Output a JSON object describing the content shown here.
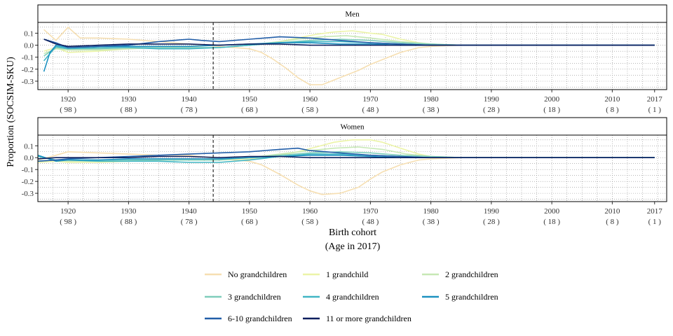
{
  "figure": {
    "ylabel": "Proportion (SOCSIM-SKU)",
    "xlabel_line1": "Birth cohort",
    "xlabel_line2": "(Age in 2017)"
  },
  "chart_data": {
    "type": "line",
    "xlim": [
      1915,
      2019
    ],
    "ylim": [
      -0.37,
      0.19
    ],
    "y_ticks": [
      0.1,
      0.0,
      -0.1,
      -0.2,
      -0.3
    ],
    "y_tick_labels": [
      "0.1",
      "0.0",
      "-0.1",
      "-0.2",
      "-0.3"
    ],
    "x_ticks": [
      {
        "x": 1920,
        "label": "1920",
        "sub": "( 98 )"
      },
      {
        "x": 1930,
        "label": "1930",
        "sub": "( 88 )"
      },
      {
        "x": 1940,
        "label": "1940",
        "sub": "( 78 )"
      },
      {
        "x": 1950,
        "label": "1950",
        "sub": "( 68 )"
      },
      {
        "x": 1960,
        "label": "1960",
        "sub": "( 58 )"
      },
      {
        "x": 1970,
        "label": "1970",
        "sub": "( 48 )"
      },
      {
        "x": 1980,
        "label": "1980",
        "sub": "( 38 )"
      },
      {
        "x": 1990,
        "label": "1990",
        "sub": "( 28 )"
      },
      {
        "x": 2000,
        "label": "2000",
        "sub": "( 18 )"
      },
      {
        "x": 2010,
        "label": "2010",
        "sub": "( 8 )"
      },
      {
        "x": 2017,
        "label": "2017",
        "sub": "( 1 )"
      }
    ],
    "legend_position": "bottom",
    "series_styles": [
      {
        "name": "No grandchildren",
        "color": "#f6dfb2"
      },
      {
        "name": "1 grandchild",
        "color": "#ecf4a8"
      },
      {
        "name": "2 grandchildren",
        "color": "#c7e8b5"
      },
      {
        "name": "3 grandchildren",
        "color": "#7fcdbb"
      },
      {
        "name": "4 grandchildren",
        "color": "#41b6c4"
      },
      {
        "name": "5 grandchildren",
        "color": "#1d91c0"
      },
      {
        "name": "6-10 grandchildren",
        "color": "#225ea8"
      },
      {
        "name": "11 or more grandchildren",
        "color": "#0c1f5e"
      }
    ],
    "panels": [
      {
        "title": "Men",
        "vline": 1944,
        "series": [
          {
            "name": "No grandchildren",
            "x": [
              1916,
              1918,
              1920,
              1922,
              1925,
              1930,
              1935,
              1940,
              1945,
              1950,
              1952,
              1954,
              1956,
              1958,
              1960,
              1962,
              1964,
              1966,
              1968,
              1970,
              1972,
              1975,
              1978,
              1980,
              1985,
              1990,
              2000,
              2010,
              2017
            ],
            "y": [
              0.13,
              0.04,
              0.15,
              0.06,
              0.06,
              0.05,
              0.03,
              0.01,
              -0.01,
              -0.03,
              -0.06,
              -0.12,
              -0.19,
              -0.27,
              -0.33,
              -0.33,
              -0.29,
              -0.25,
              -0.21,
              -0.16,
              -0.12,
              -0.06,
              -0.02,
              -0.01,
              0.0,
              0.0,
              0.0,
              0.0,
              0.0
            ]
          },
          {
            "name": "1 grandchild",
            "x": [
              1916,
              1918,
              1920,
              1925,
              1930,
              1935,
              1940,
              1945,
              1950,
              1955,
              1958,
              1961,
              1964,
              1967,
              1970,
              1972,
              1975,
              1978,
              1980,
              1985,
              1990,
              2000,
              2010,
              2017
            ],
            "y": [
              -0.05,
              -0.02,
              -0.06,
              -0.05,
              -0.03,
              -0.02,
              -0.02,
              -0.02,
              0.0,
              0.03,
              0.06,
              0.09,
              0.11,
              0.12,
              0.1,
              0.09,
              0.05,
              0.02,
              0.01,
              0.0,
              0.0,
              0.0,
              0.0,
              0.0
            ]
          },
          {
            "name": "2 grandchildren",
            "x": [
              1916,
              1918,
              1920,
              1925,
              1930,
              1935,
              1940,
              1945,
              1950,
              1955,
              1958,
              1962,
              1966,
              1970,
              1975,
              1980,
              1985,
              1990,
              2000,
              2017
            ],
            "y": [
              -0.07,
              -0.03,
              -0.04,
              -0.04,
              -0.03,
              -0.02,
              -0.02,
              -0.02,
              0.0,
              0.03,
              0.05,
              0.07,
              0.08,
              0.06,
              0.03,
              0.01,
              0.0,
              0.0,
              0.0,
              0.0
            ]
          },
          {
            "name": "3 grandchildren",
            "x": [
              1916,
              1918,
              1920,
              1925,
              1930,
              1935,
              1940,
              1945,
              1950,
              1955,
              1960,
              1965,
              1970,
              1975,
              1980,
              1985,
              2017
            ],
            "y": [
              -0.09,
              -0.02,
              -0.03,
              -0.03,
              -0.02,
              -0.02,
              -0.02,
              -0.02,
              0.0,
              0.02,
              0.04,
              0.05,
              0.04,
              0.02,
              0.01,
              0.0,
              0.0
            ]
          },
          {
            "name": "4 grandchildren",
            "x": [
              1916,
              1918,
              1920,
              1925,
              1930,
              1935,
              1940,
              1945,
              1950,
              1955,
              1960,
              1965,
              1970,
              1975,
              1980,
              2017
            ],
            "y": [
              -0.13,
              -0.01,
              -0.03,
              -0.02,
              -0.02,
              -0.03,
              -0.03,
              -0.02,
              0.0,
              0.02,
              0.03,
              0.03,
              0.02,
              0.01,
              0.0,
              0.0
            ]
          },
          {
            "name": "5 grandchildren",
            "x": [
              1916,
              1917,
              1918,
              1920,
              1925,
              1930,
              1935,
              1940,
              1945,
              1950,
              1955,
              1960,
              1965,
              1970,
              1975,
              1980,
              2017
            ],
            "y": [
              -0.22,
              -0.06,
              0.0,
              -0.02,
              -0.01,
              -0.01,
              -0.01,
              -0.01,
              0.0,
              0.01,
              0.02,
              0.02,
              0.01,
              0.01,
              0.0,
              0.0,
              0.0
            ]
          },
          {
            "name": "6-10 grandchildren",
            "x": [
              1916,
              1918,
              1920,
              1925,
              1930,
              1935,
              1940,
              1942,
              1945,
              1950,
              1955,
              1960,
              1965,
              1970,
              1975,
              1980,
              2017
            ],
            "y": [
              0.05,
              0.02,
              -0.02,
              -0.01,
              0.0,
              0.03,
              0.05,
              0.04,
              0.03,
              0.05,
              0.07,
              0.06,
              0.04,
              0.02,
              0.01,
              0.0,
              0.0
            ]
          },
          {
            "name": "11 or more grandchildren",
            "x": [
              1916,
              1918,
              1920,
              1925,
              1930,
              1935,
              1940,
              1945,
              1950,
              1955,
              1960,
              1965,
              1970,
              1975,
              1980,
              2017
            ],
            "y": [
              0.05,
              0.01,
              -0.01,
              0.0,
              0.01,
              0.01,
              0.01,
              0.0,
              0.01,
              0.01,
              0.0,
              0.0,
              0.0,
              0.0,
              0.0,
              0.0
            ]
          }
        ]
      },
      {
        "title": "Women",
        "vline": 1944,
        "series": [
          {
            "name": "No grandchildren",
            "x": [
              1915,
              1918,
              1920,
              1925,
              1930,
              1935,
              1940,
              1945,
              1950,
              1952,
              1955,
              1958,
              1960,
              1962,
              1965,
              1968,
              1970,
              1972,
              1975,
              1978,
              1980,
              1985,
              1990,
              2000,
              2010,
              2017
            ],
            "y": [
              -0.02,
              0.02,
              0.05,
              0.04,
              0.03,
              0.02,
              0.02,
              -0.01,
              -0.03,
              -0.06,
              -0.14,
              -0.23,
              -0.28,
              -0.31,
              -0.3,
              -0.25,
              -0.18,
              -0.12,
              -0.06,
              -0.02,
              -0.01,
              0.0,
              0.0,
              0.0,
              0.0,
              0.0
            ]
          },
          {
            "name": "1 grandchild",
            "x": [
              1915,
              1918,
              1920,
              1925,
              1930,
              1935,
              1940,
              1945,
              1950,
              1955,
              1958,
              1961,
              1964,
              1967,
              1970,
              1972,
              1975,
              1978,
              1980,
              1985,
              1990,
              2000,
              2010,
              2017
            ],
            "y": [
              -0.04,
              -0.03,
              -0.04,
              -0.04,
              -0.03,
              -0.02,
              -0.02,
              -0.02,
              -0.01,
              0.02,
              0.05,
              0.09,
              0.13,
              0.15,
              0.15,
              0.13,
              0.08,
              0.03,
              0.01,
              0.0,
              0.0,
              0.0,
              0.0,
              0.0
            ]
          },
          {
            "name": "2 grandchildren",
            "x": [
              1915,
              1918,
              1920,
              1925,
              1930,
              1935,
              1940,
              1945,
              1950,
              1955,
              1960,
              1964,
              1968,
              1972,
              1976,
              1980,
              1985,
              2017
            ],
            "y": [
              -0.03,
              -0.02,
              -0.03,
              -0.03,
              -0.03,
              -0.02,
              -0.02,
              -0.02,
              0.0,
              0.03,
              0.06,
              0.08,
              0.09,
              0.07,
              0.03,
              0.01,
              0.0,
              0.0
            ]
          },
          {
            "name": "3 grandchildren",
            "x": [
              1915,
              1918,
              1920,
              1925,
              1930,
              1935,
              1940,
              1945,
              1950,
              1955,
              1960,
              1965,
              1970,
              1975,
              1980,
              1985,
              2017
            ],
            "y": [
              -0.03,
              -0.02,
              -0.02,
              -0.02,
              -0.02,
              -0.02,
              -0.02,
              -0.02,
              0.0,
              0.02,
              0.04,
              0.05,
              0.04,
              0.02,
              0.01,
              0.0,
              0.0
            ]
          },
          {
            "name": "4 grandchildren",
            "x": [
              1915,
              1918,
              1920,
              1925,
              1930,
              1935,
              1940,
              1945,
              1950,
              1955,
              1960,
              1965,
              1970,
              1975,
              1980,
              2017
            ],
            "y": [
              0.01,
              -0.02,
              -0.02,
              -0.03,
              -0.03,
              -0.03,
              -0.04,
              -0.04,
              -0.02,
              0.01,
              0.03,
              0.03,
              0.02,
              0.01,
              0.0,
              0.0
            ]
          },
          {
            "name": "5 grandchildren",
            "x": [
              1915,
              1918,
              1920,
              1925,
              1930,
              1935,
              1940,
              1945,
              1950,
              1955,
              1960,
              1965,
              1970,
              1975,
              1980,
              2017
            ],
            "y": [
              0.02,
              -0.03,
              -0.02,
              -0.02,
              -0.01,
              -0.01,
              -0.01,
              -0.01,
              0.0,
              0.01,
              0.02,
              0.02,
              0.01,
              0.0,
              0.0,
              0.0
            ]
          },
          {
            "name": "6-10 grandchildren",
            "x": [
              1915,
              1918,
              1920,
              1925,
              1930,
              1935,
              1940,
              1945,
              1950,
              1955,
              1958,
              1960,
              1965,
              1970,
              1975,
              1980,
              2017
            ],
            "y": [
              -0.03,
              -0.02,
              -0.01,
              0.0,
              0.01,
              0.02,
              0.03,
              0.04,
              0.05,
              0.07,
              0.08,
              0.06,
              0.04,
              0.02,
              0.01,
              0.0,
              0.0
            ]
          },
          {
            "name": "11 or more grandchildren",
            "x": [
              1915,
              1918,
              1920,
              1925,
              1930,
              1935,
              1940,
              1945,
              1950,
              1955,
              1960,
              1965,
              1970,
              1975,
              1980,
              2017
            ],
            "y": [
              -0.01,
              0.0,
              0.0,
              0.0,
              0.0,
              0.01,
              0.01,
              0.0,
              0.01,
              0.01,
              0.0,
              0.0,
              0.0,
              0.0,
              0.0,
              0.0
            ]
          }
        ]
      }
    ]
  }
}
